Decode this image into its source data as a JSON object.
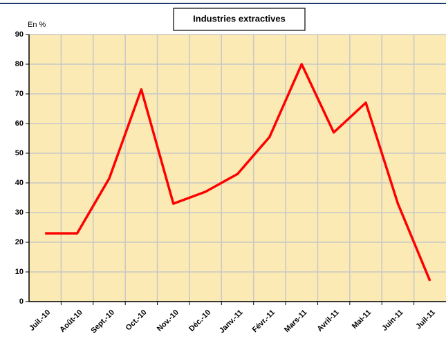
{
  "chart_data": {
    "type": "line",
    "title": "Industries extractives",
    "ylabel": "En %",
    "categories": [
      "Juil.-10",
      "Août-10",
      "Sept.-10",
      "Oct.-10",
      "Nov.-10",
      "Déc.-10",
      "Janv.-11",
      "Févr.-11",
      "Mars-11",
      "Avril-11",
      "Mai-11",
      "Juin-11",
      "Juil-11"
    ],
    "values": [
      23,
      23,
      41.5,
      71.5,
      33,
      37,
      43,
      55.5,
      80,
      57,
      67,
      33,
      7
    ],
    "color": "#ff0000",
    "ylim": [
      0,
      90
    ],
    "yticks": [
      0,
      10,
      20,
      30,
      40,
      50,
      60,
      70,
      80,
      90
    ],
    "grid": true
  }
}
